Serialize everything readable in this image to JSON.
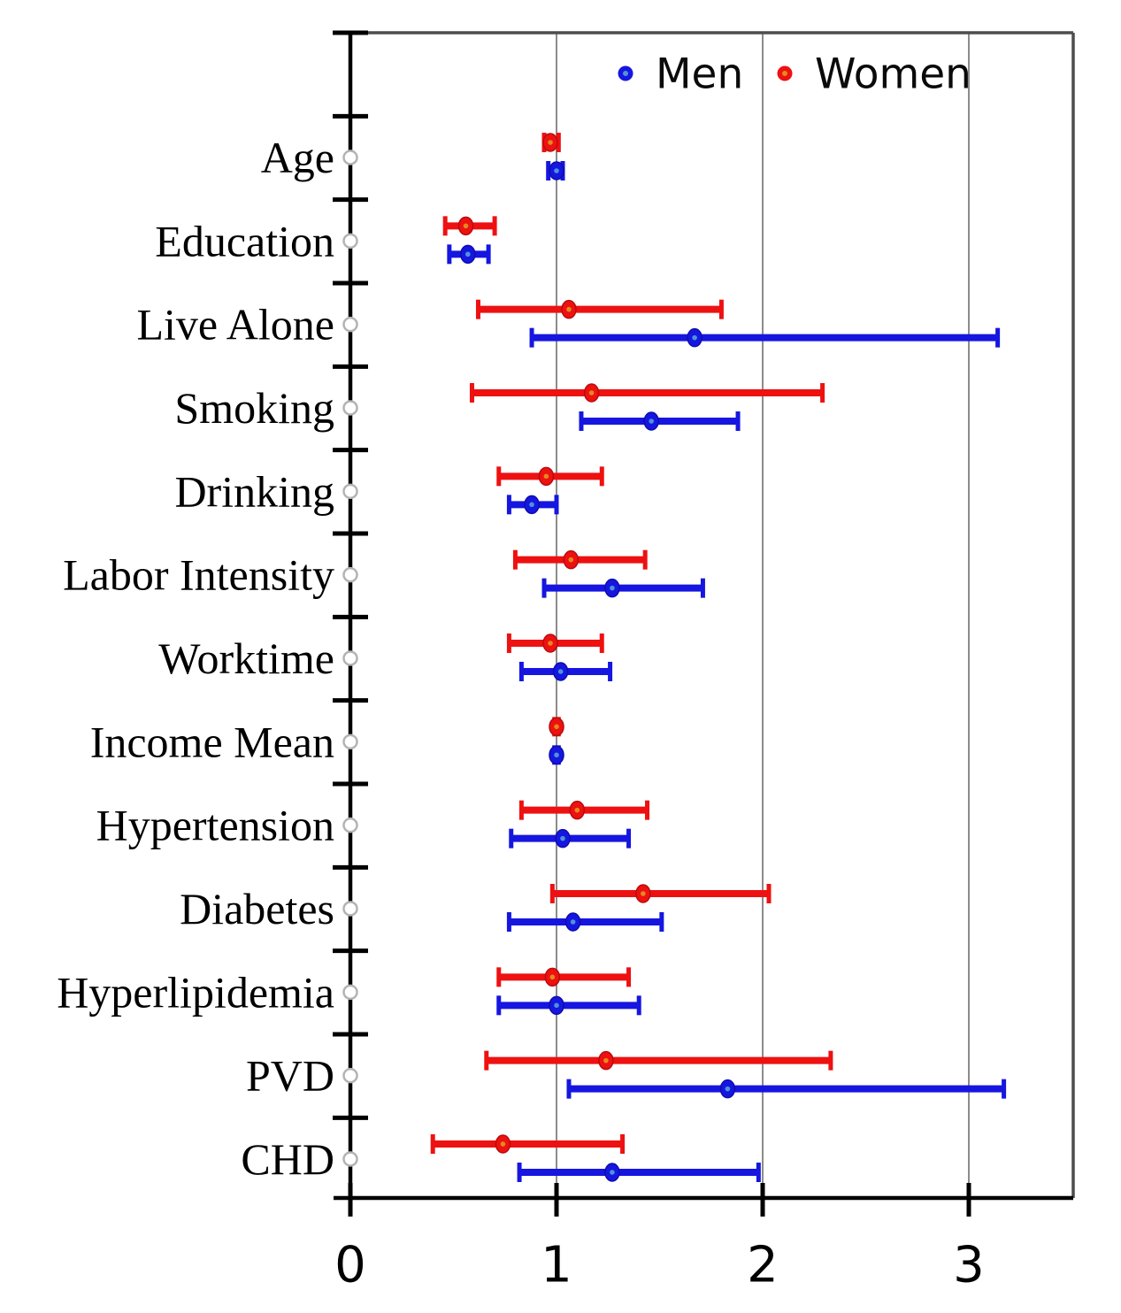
{
  "chart_data": {
    "type": "scatter",
    "subtype": "forest-plot-horizontal-error-bars",
    "title": "",
    "xlabel": "",
    "ylabel": "",
    "categories": [
      "Age",
      "Education",
      "Live Alone",
      "Smoking",
      "Drinking",
      "Labor Intensity",
      "Worktime",
      "Income Mean",
      "Hypertension",
      "Diabetes",
      "Hyperlipidemia",
      "PVD",
      "CHD"
    ],
    "series": [
      {
        "name": "Men",
        "color": "#1616e0",
        "marker_edge_color": "#0d0dae",
        "marker_center_color": "#4d94d6",
        "values": [
          1.0,
          0.57,
          1.67,
          1.46,
          0.88,
          1.27,
          1.02,
          1.0,
          1.03,
          1.08,
          1.0,
          1.83,
          1.27
        ],
        "ci_low": [
          0.96,
          0.48,
          0.88,
          1.12,
          0.77,
          0.94,
          0.83,
          0.99,
          0.78,
          0.77,
          0.72,
          1.06,
          0.82
        ],
        "ci_high": [
          1.03,
          0.67,
          3.14,
          1.88,
          1.0,
          1.71,
          1.26,
          1.01,
          1.35,
          1.51,
          1.4,
          3.17,
          1.98
        ]
      },
      {
        "name": "Women",
        "color": "#ee1111",
        "marker_edge_color": "#b80c0c",
        "marker_center_color": "#e08a1e",
        "values": [
          0.97,
          0.56,
          1.06,
          1.17,
          0.95,
          1.07,
          0.97,
          1.0,
          1.1,
          1.42,
          0.98,
          1.24,
          0.74
        ],
        "ci_low": [
          0.94,
          0.46,
          0.62,
          0.59,
          0.72,
          0.8,
          0.77,
          0.99,
          0.83,
          0.98,
          0.72,
          0.66,
          0.4
        ],
        "ci_high": [
          1.01,
          0.7,
          1.8,
          2.29,
          1.22,
          1.43,
          1.22,
          1.01,
          1.44,
          2.03,
          1.35,
          2.33,
          1.32
        ]
      }
    ],
    "xlim": [
      0,
      3.5
    ],
    "x_ticks": [
      0,
      1,
      2,
      3
    ],
    "x_tick_labels": [
      "0",
      "1",
      "2",
      "3"
    ],
    "gridlines_at": [
      1,
      2,
      3
    ],
    "grid": "vertical-only",
    "legend_position": "top-center",
    "axis_color": "#000000",
    "frame_color": "#4d4d4d",
    "gridline_color": "#8c8c8c",
    "category_marker": "open-circle",
    "category_marker_color": "#b3b3b3"
  }
}
